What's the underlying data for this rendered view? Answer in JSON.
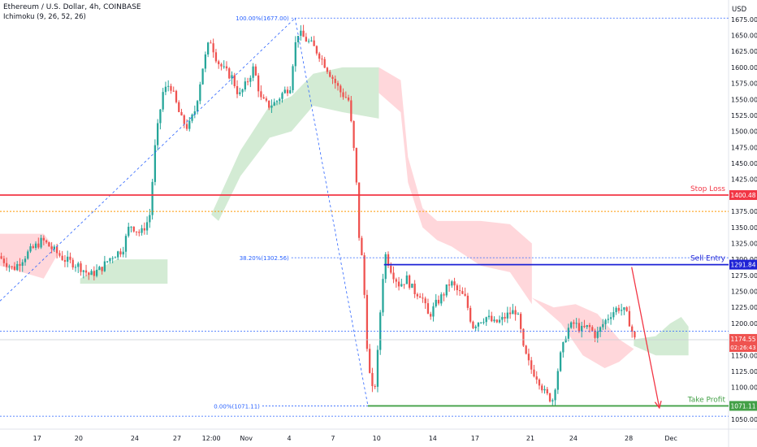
{
  "header": {
    "title": "Ethereum / U.S. Dollar, 4h, COINBASE",
    "indicator": "Ichimoku (9, 26, 52, 26)"
  },
  "colors": {
    "up": "#26a69a",
    "down": "#ef5350",
    "stop_loss": "#f23645",
    "sell_entry": "#1e22d6",
    "take_profit": "#43a047",
    "fib": "#2962ff",
    "orange": "#ff9800",
    "cloud_green": "#c8e6c9",
    "cloud_red": "#ffcdd2"
  },
  "chart_data": {
    "type": "candlestick",
    "y_axis_label": "USD",
    "ylim": [
      1045,
      1690
    ],
    "y_ticks": [
      "1675.00",
      "1650.00",
      "1625.00",
      "1600.00",
      "1575.00",
      "1550.00",
      "1525.00",
      "1500.00",
      "1475.00",
      "1450.00",
      "1425.00",
      "1375.00",
      "1350.00",
      "1325.00",
      "1300.00",
      "1275.00",
      "1250.00",
      "1225.00",
      "1200.00",
      "1150.00",
      "1125.00",
      "1100.00",
      "1050.00"
    ],
    "x_ticks": [
      {
        "label": "17",
        "pos": 0.051
      },
      {
        "label": "20",
        "pos": 0.108
      },
      {
        "label": "24",
        "pos": 0.185
      },
      {
        "label": "27",
        "pos": 0.243
      },
      {
        "label": "12:00",
        "pos": 0.29
      },
      {
        "label": "Nov",
        "pos": 0.338
      },
      {
        "label": "4",
        "pos": 0.397
      },
      {
        "label": "7",
        "pos": 0.457
      },
      {
        "label": "10",
        "pos": 0.517
      },
      {
        "label": "14",
        "pos": 0.594
      },
      {
        "label": "17",
        "pos": 0.652
      },
      {
        "label": "21",
        "pos": 0.728
      },
      {
        "label": "24",
        "pos": 0.787
      },
      {
        "label": "28",
        "pos": 0.863
      },
      {
        "label": "Dec",
        "pos": 0.921
      }
    ],
    "levels": [
      {
        "name": "Stop Loss",
        "value": 1400.48,
        "label": "1400.48",
        "color": "#f23645"
      },
      {
        "name": "Sell Entry",
        "value": 1291.84,
        "label": "1291.84",
        "color": "#1e22d6"
      },
      {
        "name": "Take Profit",
        "value": 1071.11,
        "label": "1071.11",
        "color": "#43a047"
      }
    ],
    "current_price": {
      "value": 1174.55,
      "label": "1174.55",
      "countdown": "02:26:43"
    },
    "fib_labels": [
      "100.00%(1677.00)",
      "38.20%(1302.56)",
      "0.00%(1071.11)"
    ],
    "path_points": [
      [
        0.0,
        1305
      ],
      [
        0.02,
        1285
      ],
      [
        0.04,
        1310
      ],
      [
        0.06,
        1330
      ],
      [
        0.075,
        1315
      ],
      [
        0.09,
        1300
      ],
      [
        0.11,
        1290
      ],
      [
        0.125,
        1275
      ],
      [
        0.14,
        1285
      ],
      [
        0.155,
        1305
      ],
      [
        0.17,
        1315
      ],
      [
        0.18,
        1355
      ],
      [
        0.195,
        1340
      ],
      [
        0.207,
        1365
      ],
      [
        0.215,
        1480
      ],
      [
        0.225,
        1560
      ],
      [
        0.235,
        1575
      ],
      [
        0.25,
        1520
      ],
      [
        0.26,
        1505
      ],
      [
        0.27,
        1535
      ],
      [
        0.28,
        1600
      ],
      [
        0.29,
        1645
      ],
      [
        0.3,
        1610
      ],
      [
        0.31,
        1595
      ],
      [
        0.32,
        1585
      ],
      [
        0.33,
        1555
      ],
      [
        0.34,
        1575
      ],
      [
        0.35,
        1600
      ],
      [
        0.36,
        1550
      ],
      [
        0.37,
        1540
      ],
      [
        0.38,
        1545
      ],
      [
        0.39,
        1560
      ],
      [
        0.4,
        1570
      ],
      [
        0.405,
        1620
      ],
      [
        0.41,
        1655
      ],
      [
        0.42,
        1645
      ],
      [
        0.43,
        1635
      ],
      [
        0.44,
        1620
      ],
      [
        0.45,
        1600
      ],
      [
        0.46,
        1580
      ],
      [
        0.47,
        1560
      ],
      [
        0.48,
        1550
      ],
      [
        0.485,
        1500
      ],
      [
        0.49,
        1440
      ],
      [
        0.495,
        1330
      ],
      [
        0.5,
        1290
      ],
      [
        0.505,
        1175
      ],
      [
        0.51,
        1110
      ],
      [
        0.515,
        1085
      ],
      [
        0.52,
        1150
      ],
      [
        0.525,
        1240
      ],
      [
        0.53,
        1310
      ],
      [
        0.54,
        1280
      ],
      [
        0.55,
        1260
      ],
      [
        0.56,
        1270
      ],
      [
        0.57,
        1250
      ],
      [
        0.58,
        1245
      ],
      [
        0.59,
        1210
      ],
      [
        0.6,
        1230
      ],
      [
        0.61,
        1245
      ],
      [
        0.62,
        1265
      ],
      [
        0.63,
        1250
      ],
      [
        0.64,
        1240
      ],
      [
        0.645,
        1220
      ],
      [
        0.65,
        1195
      ],
      [
        0.66,
        1205
      ],
      [
        0.67,
        1210
      ],
      [
        0.68,
        1200
      ],
      [
        0.69,
        1205
      ],
      [
        0.7,
        1215
      ],
      [
        0.71,
        1220
      ],
      [
        0.715,
        1200
      ],
      [
        0.72,
        1160
      ],
      [
        0.725,
        1145
      ],
      [
        0.73,
        1130
      ],
      [
        0.74,
        1115
      ],
      [
        0.75,
        1090
      ],
      [
        0.76,
        1080
      ],
      [
        0.765,
        1110
      ],
      [
        0.77,
        1145
      ],
      [
        0.775,
        1165
      ],
      [
        0.78,
        1190
      ],
      [
        0.79,
        1200
      ],
      [
        0.8,
        1190
      ],
      [
        0.81,
        1195
      ],
      [
        0.82,
        1180
      ],
      [
        0.83,
        1200
      ],
      [
        0.84,
        1215
      ],
      [
        0.85,
        1225
      ],
      [
        0.86,
        1218
      ],
      [
        0.865,
        1205
      ],
      [
        0.87,
        1185
      ],
      [
        0.873,
        1174.55
      ]
    ],
    "projection": {
      "from": [
        0.867,
        1288
      ],
      "to": [
        0.905,
        1068
      ]
    }
  }
}
